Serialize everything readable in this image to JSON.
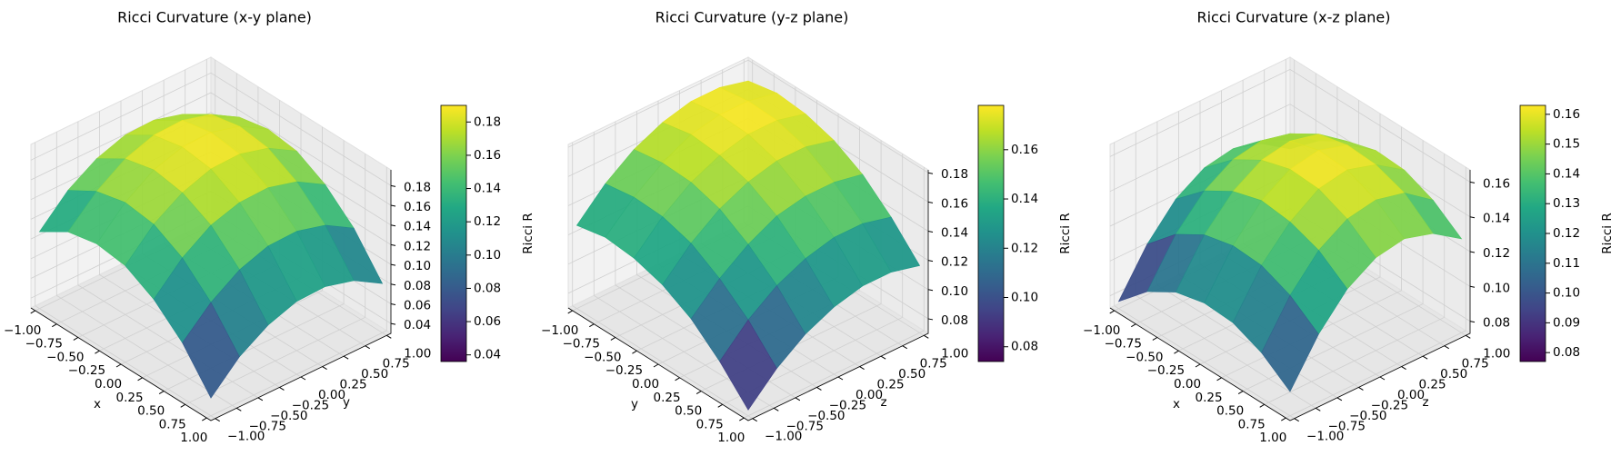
{
  "chart_data": [
    {
      "type": "surface",
      "title": "Ricci Curvature (x-y plane)",
      "xlabel": "x",
      "ylabel": "y",
      "colorbar_label": "Ricci R",
      "colormap": "viridis",
      "x": [
        -1,
        -0.667,
        -0.333,
        0,
        0.333,
        0.667,
        1
      ],
      "y": [
        -1,
        -0.667,
        -0.333,
        0,
        0.333,
        0.667,
        1
      ],
      "values": [
        [
          0.108,
          0.126,
          0.132,
          0.128,
          0.112,
          0.086,
          0.048
        ],
        [
          0.136,
          0.153,
          0.16,
          0.156,
          0.14,
          0.113,
          0.076
        ],
        [
          0.154,
          0.172,
          0.179,
          0.174,
          0.159,
          0.132,
          0.094
        ],
        [
          0.164,
          0.182,
          0.188,
          0.184,
          0.168,
          0.142,
          0.104
        ],
        [
          0.165,
          0.183,
          0.189,
          0.185,
          0.169,
          0.143,
          0.105
        ],
        [
          0.157,
          0.175,
          0.181,
          0.177,
          0.161,
          0.135,
          0.097
        ],
        [
          0.14,
          0.158,
          0.164,
          0.16,
          0.144,
          0.118,
          0.08
        ]
      ],
      "xlim": [
        -1.05,
        1.05
      ],
      "ylim": [
        -1.05,
        1.05
      ],
      "zlim": [
        0.03,
        0.196
      ],
      "clim": [
        0.036,
        0.19
      ],
      "xticks": [
        {
          "value": -1,
          "label": "−1.00"
        },
        {
          "value": -0.75,
          "label": "−0.75"
        },
        {
          "value": -0.5,
          "label": "−0.50"
        },
        {
          "value": -0.25,
          "label": "−0.25"
        },
        {
          "value": 0,
          "label": "0.00"
        },
        0.25,
        {
          "value": 0.5,
          "label": "0.50"
        },
        0.75,
        {
          "value": 1,
          "label": "1.00"
        }
      ],
      "yticks": [
        {
          "value": -1,
          "label": "−1.00"
        },
        {
          "value": -0.75,
          "label": "−0.75"
        },
        {
          "value": -0.5,
          "label": "−0.50"
        },
        {
          "value": -0.25,
          "label": "−0.25"
        },
        {
          "value": 0,
          "label": "0.00"
        },
        0.25,
        {
          "value": 0.5,
          "label": "0.50"
        },
        0.75,
        {
          "value": 1,
          "label": "1.00"
        }
      ],
      "zticks": [
        0.04,
        0.06,
        0.08,
        {
          "value": 0.1,
          "label": "0.10"
        },
        0.12,
        0.14,
        0.16,
        0.18
      ],
      "cticks": [
        0.04,
        0.06,
        0.08,
        {
          "value": 0.1,
          "label": "0.10"
        },
        0.12,
        0.14,
        0.16,
        0.18
      ]
    },
    {
      "type": "surface",
      "title": "Ricci Curvature (y-z plane)",
      "xlabel": "y",
      "ylabel": "z",
      "colorbar_label": "Ricci R",
      "colormap": "viridis",
      "x": [
        -1,
        -0.667,
        -0.333,
        0,
        0.333,
        0.667,
        1
      ],
      "y": [
        -1,
        -0.667,
        -0.333,
        0,
        0.333,
        0.667,
        1
      ],
      "values": [
        [
          0.127,
          0.131,
          0.129,
          0.123,
          0.112,
          0.095,
          0.074
        ],
        [
          0.146,
          0.149,
          0.148,
          0.142,
          0.13,
          0.114,
          0.093
        ],
        [
          0.16,
          0.163,
          0.162,
          0.156,
          0.144,
          0.128,
          0.107
        ],
        [
          0.169,
          0.173,
          0.171,
          0.165,
          0.154,
          0.137,
          0.116
        ],
        [
          0.174,
          0.177,
          0.176,
          0.17,
          0.158,
          0.142,
          0.121
        ],
        [
          0.174,
          0.177,
          0.176,
          0.17,
          0.158,
          0.142,
          0.121
        ],
        [
          0.169,
          0.173,
          0.171,
          0.165,
          0.154,
          0.137,
          0.116
        ]
      ],
      "xlim": [
        -1.05,
        1.05
      ],
      "ylim": [
        -1.05,
        1.05
      ],
      "zlim": [
        0.07,
        0.182
      ],
      "clim": [
        0.074,
        0.178
      ],
      "xticks": [
        {
          "value": -1,
          "label": "−1.00"
        },
        {
          "value": -0.75,
          "label": "−0.75"
        },
        {
          "value": -0.5,
          "label": "−0.50"
        },
        {
          "value": -0.25,
          "label": "−0.25"
        },
        {
          "value": 0,
          "label": "0.00"
        },
        0.25,
        {
          "value": 0.5,
          "label": "0.50"
        },
        0.75,
        {
          "value": 1,
          "label": "1.00"
        }
      ],
      "yticks": [
        {
          "value": -1,
          "label": "−1.00"
        },
        {
          "value": -0.75,
          "label": "−0.75"
        },
        {
          "value": -0.5,
          "label": "−0.50"
        },
        {
          "value": -0.25,
          "label": "−0.25"
        },
        {
          "value": 0,
          "label": "0.00"
        },
        0.25,
        {
          "value": 0.5,
          "label": "0.50"
        },
        0.75,
        {
          "value": 1,
          "label": "1.00"
        }
      ],
      "zticks": [
        0.08,
        {
          "value": 0.1,
          "label": "0.10"
        },
        0.12,
        0.14,
        0.16,
        0.18
      ],
      "cticks": [
        0.08,
        {
          "value": 0.1,
          "label": "0.10"
        },
        0.12,
        0.14,
        0.16
      ]
    },
    {
      "type": "surface",
      "title": "Ricci Curvature (x-z plane)",
      "xlabel": "x",
      "ylabel": "z",
      "colorbar_label": "Ricci R",
      "colormap": "viridis",
      "x": [
        -1,
        -0.667,
        -0.333,
        0,
        0.333,
        0.667,
        1
      ],
      "y": [
        -1,
        -0.667,
        -0.333,
        0,
        0.333,
        0.667,
        1
      ],
      "values": [
        [
          0.077,
          0.093,
          0.103,
          0.107,
          0.106,
          0.099,
          0.087
        ],
        [
          0.102,
          0.118,
          0.128,
          0.132,
          0.131,
          0.124,
          0.112
        ],
        [
          0.12,
          0.135,
          0.145,
          0.15,
          0.148,
          0.142,
          0.13
        ],
        [
          0.13,
          0.145,
          0.155,
          0.16,
          0.159,
          0.152,
          0.14
        ],
        [
          0.133,
          0.148,
          0.158,
          0.163,
          0.162,
          0.155,
          0.143
        ],
        [
          0.128,
          0.144,
          0.154,
          0.158,
          0.157,
          0.151,
          0.138
        ],
        [
          0.117,
          0.132,
          0.142,
          0.147,
          0.146,
          0.139,
          0.127
        ]
      ],
      "xlim": [
        -1.05,
        1.05
      ],
      "ylim": [
        -1.05,
        1.05
      ],
      "zlim": [
        0.073,
        0.167
      ],
      "clim": [
        0.077,
        0.163
      ],
      "xticks": [
        {
          "value": -1,
          "label": "−1.00"
        },
        {
          "value": -0.75,
          "label": "−0.75"
        },
        {
          "value": -0.5,
          "label": "−0.50"
        },
        {
          "value": -0.25,
          "label": "−0.25"
        },
        {
          "value": 0,
          "label": "0.00"
        },
        0.25,
        {
          "value": 0.5,
          "label": "0.50"
        },
        0.75,
        {
          "value": 1,
          "label": "1.00"
        }
      ],
      "yticks": [
        {
          "value": -1,
          "label": "−1.00"
        },
        {
          "value": -0.75,
          "label": "−0.75"
        },
        {
          "value": -0.5,
          "label": "−0.50"
        },
        {
          "value": -0.25,
          "label": "−0.25"
        },
        {
          "value": 0,
          "label": "0.00"
        },
        0.25,
        {
          "value": 0.5,
          "label": "0.50"
        },
        0.75,
        {
          "value": 1,
          "label": "1.00"
        }
      ],
      "zticks": [
        0.08,
        {
          "value": 0.1,
          "label": "0.10"
        },
        0.12,
        0.14,
        0.16
      ],
      "cticks": [
        0.08,
        0.09,
        {
          "value": 0.1,
          "label": "0.10"
        },
        0.11,
        0.12,
        0.13,
        0.14,
        0.15,
        0.16
      ]
    }
  ]
}
